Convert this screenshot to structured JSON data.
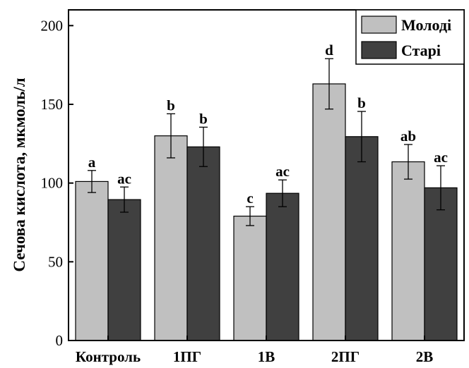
{
  "chart_data": {
    "type": "bar",
    "ylabel": "Сечова кислота, мкмоль/л",
    "xlabel": "",
    "categories": [
      "Контроль",
      "1ПГ",
      "1В",
      "2ПГ",
      "2В"
    ],
    "ylim": [
      0,
      210
    ],
    "yticks": [
      0,
      50,
      100,
      150,
      200
    ],
    "legend_position": "top-right",
    "series": [
      {
        "name": "Молоді",
        "color": "#c0c0c0",
        "values": [
          101,
          130,
          79,
          163,
          113.5
        ],
        "errors": [
          7,
          14,
          6,
          16,
          11
        ],
        "labels": [
          "a",
          "b",
          "c",
          "d",
          "ab"
        ]
      },
      {
        "name": "Старі",
        "color": "#404040",
        "values": [
          89.5,
          123,
          93.5,
          129.5,
          97
        ],
        "errors": [
          8,
          12.5,
          8.5,
          16,
          14
        ],
        "labels": [
          "ac",
          "b",
          "ac",
          "b",
          "ac"
        ]
      }
    ]
  }
}
